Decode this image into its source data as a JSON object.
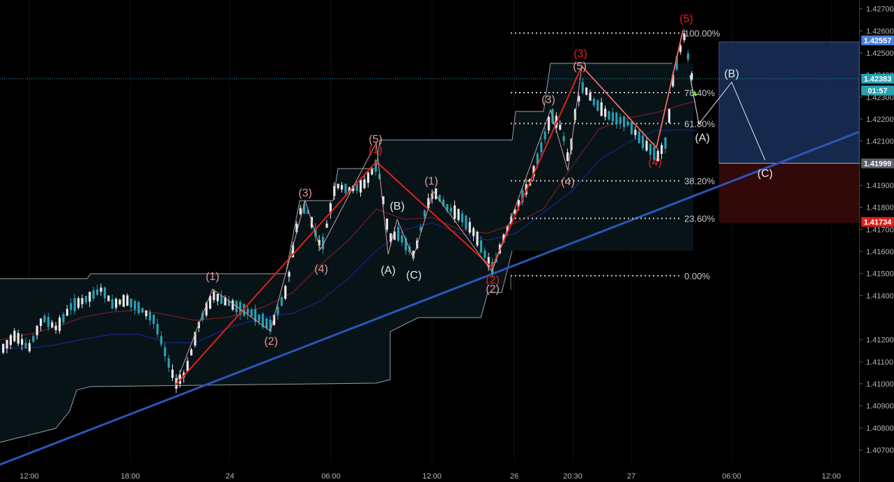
{
  "chart_data": {
    "type": "candlestick",
    "symbol_hint": "EURUSD-like forex pair (unlabeled)",
    "ylim": [
      1.4064,
      1.4274
    ],
    "price_ticks": [
      "1.42700",
      "1.42600",
      "1.42500",
      "1.42400",
      "1.42300",
      "1.42200",
      "1.42100",
      "1.42000",
      "1.41900",
      "1.41800",
      "1.41700",
      "1.41600",
      "1.41500",
      "1.41400",
      "1.41200",
      "1.41100",
      "1.41000",
      "1.40900",
      "1.40800",
      "1.40700"
    ],
    "time_ticks": [
      "12:00",
      "18:00",
      "24",
      "06:00",
      "12:00",
      "26",
      "20:30",
      "27",
      "06:00",
      "12:00"
    ],
    "price_tags": [
      {
        "label": "1.42557",
        "value": 1.42557,
        "color": "#4a7fd8"
      },
      {
        "label": "1.42383",
        "value": 1.42383,
        "color": "#2a9fb0"
      },
      {
        "label": "01:57",
        "value": 1.4233,
        "color": "#2a9fb0"
      },
      {
        "label": "1.41999",
        "value": 1.41999,
        "color": "#5d606b"
      },
      {
        "label": "1.41734",
        "value": 1.41734,
        "color": "#e0201a"
      }
    ],
    "current_price": 1.42383,
    "fib_levels": [
      {
        "label": "100.00%",
        "value": 1.4259
      },
      {
        "label": "76.40%",
        "value": 1.4232
      },
      {
        "label": "61.80%",
        "value": 1.4218
      },
      {
        "label": "38.20%",
        "value": 1.4192
      },
      {
        "label": "23.60%",
        "value": 1.4175
      },
      {
        "label": "0.00%",
        "value": 1.4149
      }
    ],
    "wave_labels": [
      {
        "text": "(1)",
        "color": "#e59a9a"
      },
      {
        "text": "(2)",
        "color": "#e59a9a"
      },
      {
        "text": "(3)",
        "color": "#e59a9a"
      },
      {
        "text": "(4)",
        "color": "#e59a9a"
      },
      {
        "text": "(5)",
        "color": "#e59a9a"
      },
      {
        "text": "(1)",
        "color": "#e0201a"
      },
      {
        "text": "(A)",
        "color": "#e8e8e8"
      },
      {
        "text": "(B)",
        "color": "#e8e8e8"
      },
      {
        "text": "(C)",
        "color": "#e8e8e8"
      },
      {
        "text": "(1)",
        "color": "#e59a9a"
      },
      {
        "text": "(2)",
        "color": "#e0201a"
      },
      {
        "text": "(2)",
        "color": "#e59a9a"
      },
      {
        "text": "(3)",
        "color": "#e59a9a"
      },
      {
        "text": "(4)",
        "color": "#e59a9a"
      },
      {
        "text": "(5)",
        "color": "#e59a9a"
      },
      {
        "text": "(3)",
        "color": "#e0201a"
      },
      {
        "text": "(4)",
        "color": "#e0201a"
      },
      {
        "text": "(5)",
        "color": "#e0201a"
      },
      {
        "text": "(A)",
        "color": "#e8e8e8"
      },
      {
        "text": "(B)",
        "color": "#e8e8e8"
      },
      {
        "text": "(C)",
        "color": "#e8e8e8"
      }
    ],
    "projection_box": {
      "top": 1.4255,
      "mid": 1.42,
      "bottom": 1.4173
    },
    "colors": {
      "bull": "#e8e8e8",
      "bear": "#2a9fb0",
      "wave": "#e0201a",
      "trend": "#2b56b8",
      "ma_red": "#8a2020",
      "ma_blue": "#1a2a9a",
      "projection": "#e8e8e8",
      "fib": "#c8c8c8"
    }
  }
}
